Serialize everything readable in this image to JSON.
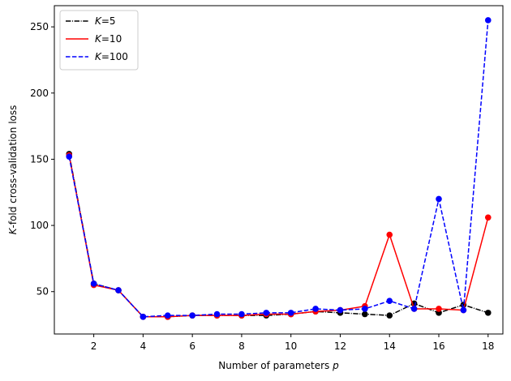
{
  "chart_data": {
    "type": "line",
    "xlabel": "Number of parameters",
    "xlabel_var": "p",
    "ylabel_var": "K",
    "ylabel": "-fold cross-validation loss",
    "xlim": [
      0.4,
      18.6
    ],
    "ylim": [
      18,
      266
    ],
    "xticks": [
      2,
      4,
      6,
      8,
      10,
      12,
      14,
      16,
      18
    ],
    "yticks": [
      50,
      100,
      150,
      200,
      250
    ],
    "grid": false,
    "legend_position": "top-left",
    "x": [
      1,
      2,
      3,
      4,
      5,
      6,
      7,
      8,
      9,
      10,
      11,
      12,
      13,
      14,
      15,
      16,
      17,
      18
    ],
    "series": [
      {
        "name": "5",
        "name_prefix": "K=",
        "color": "#000000",
        "linestyle": "dashdot",
        "values": [
          154,
          56,
          51,
          31,
          31,
          32,
          32,
          32,
          32,
          33,
          35,
          34,
          33,
          32,
          41,
          34,
          40,
          34
        ]
      },
      {
        "name": "10",
        "name_prefix": "K=",
        "color": "#ff0000",
        "linestyle": "solid",
        "values": [
          153,
          55,
          51,
          31,
          31,
          32,
          32,
          32,
          33,
          33,
          35,
          36,
          39,
          93,
          37,
          37,
          36,
          106
        ]
      },
      {
        "name": "100",
        "name_prefix": "K=",
        "color": "#0000ff",
        "linestyle": "dashed",
        "values": [
          152,
          56,
          51,
          31,
          32,
          32,
          33,
          33,
          34,
          34,
          37,
          36,
          37,
          43,
          37,
          120,
          36,
          255
        ]
      }
    ]
  }
}
